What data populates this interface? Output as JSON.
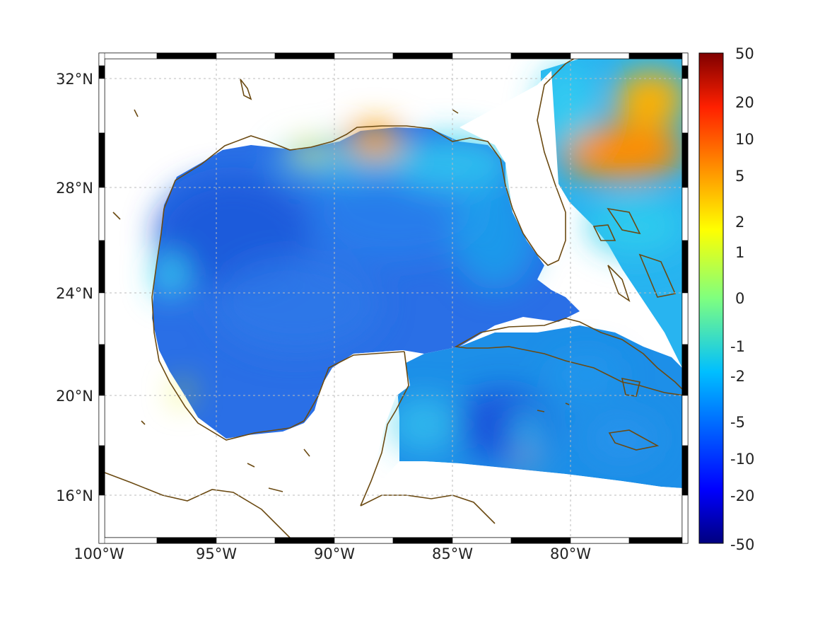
{
  "chart_data": {
    "type": "heatmap",
    "title": "",
    "xlabel": "",
    "ylabel": "",
    "projection": "mercator",
    "lon_range": [
      -100,
      -75
    ],
    "lat_range": [
      14.2,
      32.9
    ],
    "lon_ticks": [
      {
        "value": -100,
        "label": "100°W"
      },
      {
        "value": -95,
        "label": "95°W"
      },
      {
        "value": -90,
        "label": "90°W"
      },
      {
        "value": -85,
        "label": "85°W"
      },
      {
        "value": -80,
        "label": "80°W"
      }
    ],
    "lat_ticks": [
      {
        "value": 32,
        "label": "32°N"
      },
      {
        "value": 28,
        "label": "28°N"
      },
      {
        "value": 24,
        "label": "24°N"
      },
      {
        "value": 20,
        "label": "20°N"
      },
      {
        "value": 16,
        "label": "16°N"
      }
    ],
    "grid": true,
    "colorbar": {
      "placement": "right",
      "min": -50,
      "max": 50,
      "ticks": [
        {
          "value": 50,
          "label": "50"
        },
        {
          "value": 20,
          "label": "20"
        },
        {
          "value": 10,
          "label": "10"
        },
        {
          "value": 5,
          "label": "5"
        },
        {
          "value": 2,
          "label": "2"
        },
        {
          "value": 1,
          "label": "1"
        },
        {
          "value": 0,
          "label": "0"
        },
        {
          "value": -1,
          "label": "-1"
        },
        {
          "value": -2,
          "label": "-2"
        },
        {
          "value": -5,
          "label": "-5"
        },
        {
          "value": -10,
          "label": "-10"
        },
        {
          "value": -20,
          "label": "-20"
        },
        {
          "value": -50,
          "label": "-50"
        }
      ],
      "colormap": "jet"
    },
    "field_summary": [
      {
        "region": "western Gulf of Mexico",
        "value": -6
      },
      {
        "region": "central Gulf of Mexico",
        "value": -4
      },
      {
        "region": "northern Gulf shelf (Mississippi delta)",
        "value": 3
      },
      {
        "region": "Atlantic east of Florida, north",
        "value": 4
      },
      {
        "region": "Atlantic east of Florida, 29N",
        "value": 6
      },
      {
        "region": "Caribbean south of Cuba",
        "value": -4
      },
      {
        "region": "Caribbean near 18N 84W",
        "value": -8
      }
    ],
    "coastline_color": "#6b4a12",
    "grid_color": "#bbbbbb"
  }
}
